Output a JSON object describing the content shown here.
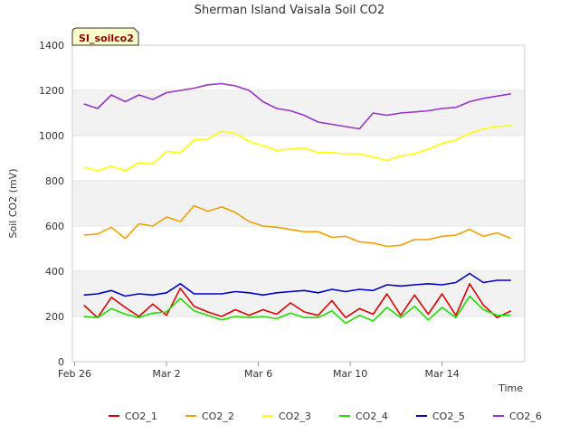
{
  "chart_data": {
    "type": "line",
    "title": "Sherman Island Vaisala Soil CO2",
    "xlabel": "Time",
    "ylabel": "Soil CO2 (mV)",
    "ylim": [
      0,
      1400
    ],
    "yticks": [
      0,
      200,
      400,
      600,
      800,
      1000,
      1200,
      1400
    ],
    "xlim_days": [
      -0.1,
      19.6
    ],
    "xticks": [
      {
        "label": "Feb 26",
        "day": 0
      },
      {
        "label": "Mar 2",
        "day": 4
      },
      {
        "label": "Mar 6",
        "day": 8
      },
      {
        "label": "Mar 10",
        "day": 12
      },
      {
        "label": "Mar 14",
        "day": 16
      }
    ],
    "grid": "alternating horizontal bands",
    "legend_position": "bottom",
    "badge": "SI_soilco2",
    "x_days": [
      0.4,
      1.0,
      1.6,
      2.2,
      2.8,
      3.4,
      4.0,
      4.6,
      5.2,
      5.8,
      6.4,
      7.0,
      7.6,
      8.2,
      8.8,
      9.4,
      10.0,
      10.6,
      11.2,
      11.8,
      12.4,
      13.0,
      13.6,
      14.2,
      14.8,
      15.4,
      16.0,
      16.6,
      17.2,
      17.8,
      18.4,
      19.0
    ],
    "series": [
      {
        "name": "CO2_1",
        "color": "#e00000",
        "values": [
          250,
          195,
          285,
          240,
          200,
          255,
          205,
          325,
          245,
          220,
          200,
          230,
          205,
          230,
          210,
          260,
          220,
          205,
          270,
          195,
          235,
          210,
          300,
          205,
          295,
          210,
          300,
          205,
          345,
          250,
          195,
          225
        ]
      },
      {
        "name": "CO2_2",
        "color": "#f0a000",
        "values": [
          560,
          565,
          595,
          545,
          610,
          600,
          640,
          620,
          690,
          665,
          685,
          660,
          620,
          600,
          595,
          585,
          575,
          575,
          550,
          555,
          530,
          525,
          510,
          515,
          540,
          540,
          555,
          560,
          585,
          555,
          570,
          545
        ]
      },
      {
        "name": "CO2_3",
        "color": "#ffff00",
        "values": [
          860,
          845,
          865,
          845,
          880,
          875,
          930,
          925,
          980,
          985,
          1020,
          1010,
          975,
          955,
          935,
          940,
          945,
          925,
          925,
          920,
          920,
          905,
          890,
          910,
          920,
          940,
          965,
          980,
          1010,
          1030,
          1040,
          1045
        ]
      },
      {
        "name": "CO2_4",
        "color": "#20e000",
        "values": [
          200,
          195,
          235,
          210,
          195,
          215,
          220,
          280,
          225,
          205,
          185,
          200,
          195,
          200,
          190,
          215,
          195,
          195,
          225,
          170,
          205,
          180,
          240,
          195,
          245,
          185,
          240,
          195,
          290,
          230,
          205,
          205
        ]
      },
      {
        "name": "CO2_5",
        "color": "#0000cc",
        "values": [
          295,
          300,
          315,
          290,
          300,
          295,
          305,
          345,
          300,
          300,
          300,
          310,
          305,
          295,
          305,
          310,
          315,
          305,
          320,
          310,
          320,
          315,
          340,
          335,
          340,
          345,
          340,
          350,
          390,
          350,
          360,
          360
        ]
      },
      {
        "name": "CO2_6",
        "color": "#9933cc",
        "values": [
          1140,
          1120,
          1180,
          1150,
          1180,
          1160,
          1190,
          1200,
          1210,
          1225,
          1230,
          1220,
          1200,
          1150,
          1120,
          1110,
          1090,
          1060,
          1050,
          1040,
          1030,
          1100,
          1090,
          1100,
          1105,
          1110,
          1120,
          1125,
          1150,
          1165,
          1175,
          1185
        ]
      }
    ]
  }
}
